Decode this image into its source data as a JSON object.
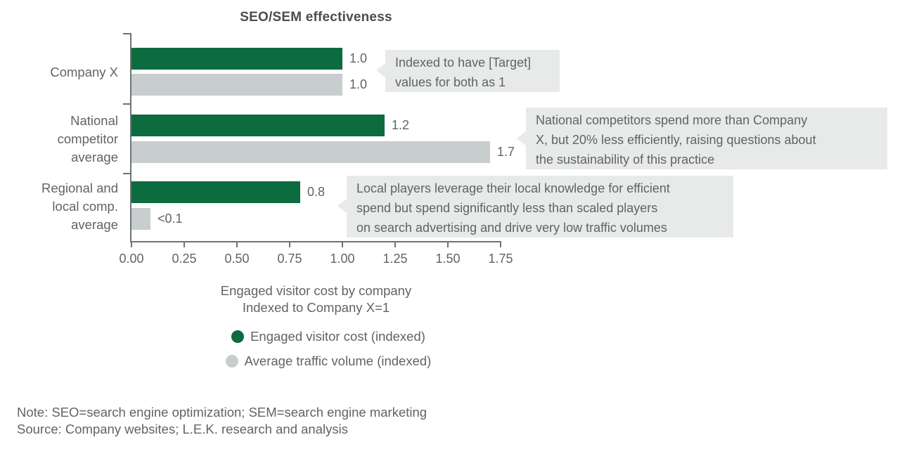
{
  "chart_data": {
    "type": "bar",
    "orientation": "horizontal",
    "title": "SEO/SEM effectiveness",
    "categories": [
      "Company X",
      "National competitor average",
      "Regional and local comp. average"
    ],
    "category_lines": [
      [
        "Company X"
      ],
      [
        "National",
        "competitor",
        "average"
      ],
      [
        "Regional and",
        "local comp.",
        "average"
      ]
    ],
    "series": [
      {
        "name": "Engaged visitor cost (indexed)",
        "color": "#0d6b40",
        "values": [
          1.0,
          1.2,
          0.8
        ],
        "labels": [
          "1.0",
          "1.2",
          "0.8"
        ]
      },
      {
        "name": "Average traffic volume (indexed)",
        "color": "#c8cdcd",
        "values": [
          1.0,
          1.7,
          0.09
        ],
        "labels": [
          "1.0",
          "1.7",
          "<0.1"
        ]
      }
    ],
    "xlabel": [
      "Engaged visitor cost by company",
      "Indexed to Company X=1"
    ],
    "xlim": [
      0,
      1.75
    ],
    "xticks": [
      "0.00",
      "0.25",
      "0.50",
      "0.75",
      "1.00",
      "1.25",
      "1.50",
      "1.75"
    ],
    "grid": false,
    "legend_position": "bottom",
    "annotations": [
      {
        "lines": [
          "Indexed to have [Target]",
          "values for both as 1"
        ]
      },
      {
        "lines": [
          "National competitors spend more than Company",
          "X, but 20% less efficiently, raising questions about",
          "the sustainability of this practice"
        ]
      },
      {
        "lines": [
          "Local players leverage their local knowledge for efficient",
          "spend but spend significantly less than scaled players",
          "on search advertising and drive very low traffic volumes"
        ]
      }
    ]
  },
  "colors": {
    "bar_green": "#0d6b40",
    "bar_gray": "#c8cdcd",
    "callout_bg": "#e8eaea",
    "text": "#5f6466",
    "title": "#484e51",
    "axis": "#6e7373"
  },
  "footer": {
    "note": "Note: SEO=search engine optimization; SEM=search engine marketing",
    "source": "Source: Company websites; L.E.K. research and analysis"
  }
}
